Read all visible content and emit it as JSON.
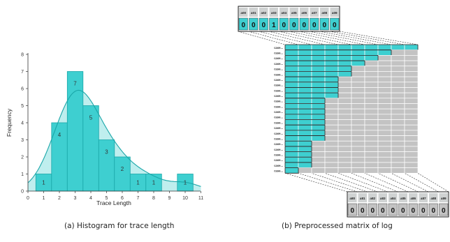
{
  "captions": {
    "a": "(a) Histogram for trace length",
    "b": "(b) Preprocessed matrix of log"
  },
  "colors": {
    "teal": "#3ecfd0",
    "teal_light": "#a6e7e7",
    "teal_stroke": "#1aa7a9",
    "gray_cell": "#c3c3c3",
    "dark": "#222222"
  },
  "chart_data": {
    "type": "bar",
    "x": [
      1,
      2,
      3,
      4,
      5,
      6,
      7,
      8,
      10
    ],
    "values": [
      1,
      4,
      7,
      5,
      3,
      2,
      1,
      1,
      1
    ],
    "data_labels": [
      "1",
      "4",
      "7",
      "5",
      "3",
      "2",
      "1",
      "1",
      "1"
    ],
    "xlabel": "Trace Length",
    "ylabel": "Frequency",
    "xlim": [
      0,
      11
    ],
    "ylim": [
      0,
      8
    ],
    "xticks": [
      "0",
      "1",
      "2",
      "3",
      "4",
      "5",
      "6",
      "7",
      "8",
      "9",
      "10",
      "11"
    ],
    "yticks": [
      "0",
      "1",
      "2",
      "3",
      "4",
      "5",
      "6",
      "7",
      "8"
    ],
    "overlay": "density-curve",
    "grid": false
  },
  "matrix": {
    "top_headers": [
      "a00",
      "a01",
      "a02",
      "a03",
      "a04",
      "a05",
      "a06",
      "a07",
      "a08",
      "a09"
    ],
    "top_values": [
      "0",
      "0",
      "0",
      "1",
      "0",
      "0",
      "0",
      "0",
      "0",
      "0"
    ],
    "bottom_headers": [
      "a80",
      "a81",
      "a82",
      "a83",
      "a84",
      "a85",
      "a86",
      "a87",
      "a88",
      "a89"
    ],
    "bottom_values": [
      "0",
      "0",
      "0",
      "0",
      "0",
      "0",
      "0",
      "0",
      "0",
      "0"
    ],
    "row_label": "case",
    "row_lengths": [
      10,
      8,
      7,
      6,
      5,
      5,
      4,
      4,
      4,
      4,
      3,
      3,
      3,
      3,
      3,
      3,
      3,
      3,
      2,
      2,
      2,
      2,
      2,
      1
    ],
    "columns": 10
  }
}
